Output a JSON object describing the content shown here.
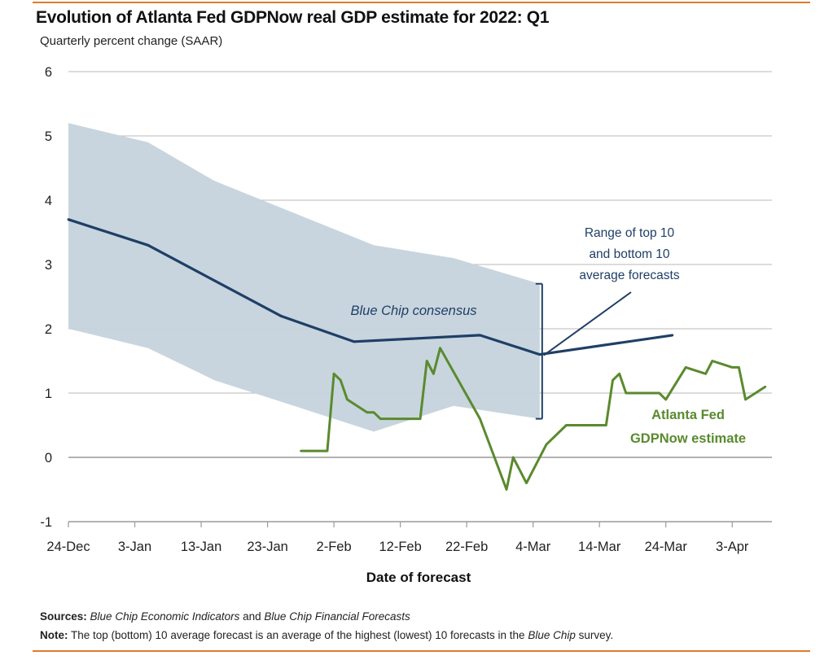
{
  "chart_data": {
    "type": "line",
    "title": "Evolution of Atlanta Fed GDPNow real GDP estimate for 2022: Q1",
    "subtitle": "Quarterly percent change (SAAR)",
    "xlabel": "Date of forecast",
    "ylabel": "",
    "ylim": [
      -1,
      6
    ],
    "yticks": [
      -1,
      0,
      1,
      2,
      3,
      4,
      5,
      6
    ],
    "xlim_days": [
      0,
      105
    ],
    "xticks": [
      {
        "day": 0,
        "label": "24-Dec"
      },
      {
        "day": 10,
        "label": "3-Jan"
      },
      {
        "day": 20,
        "label": "13-Jan"
      },
      {
        "day": 30,
        "label": "23-Jan"
      },
      {
        "day": 40,
        "label": "2-Feb"
      },
      {
        "day": 50,
        "label": "12-Feb"
      },
      {
        "day": 60,
        "label": "22-Feb"
      },
      {
        "day": 70,
        "label": "4-Mar"
      },
      {
        "day": 80,
        "label": "14-Mar"
      },
      {
        "day": 90,
        "label": "24-Mar"
      },
      {
        "day": 100,
        "label": "3-Apr"
      }
    ],
    "grid": true,
    "series": [
      {
        "name": "Range of top 10 and bottom 10 average forecasts",
        "kind": "band",
        "color": "#c5d3dc",
        "x": [
          0,
          12,
          22,
          34,
          46,
          58,
          71
        ],
        "upper": [
          5.2,
          4.9,
          4.3,
          3.8,
          3.3,
          3.1,
          2.7
        ],
        "lower": [
          2.0,
          1.7,
          1.2,
          0.8,
          0.4,
          0.8,
          0.6
        ]
      },
      {
        "name": "Blue Chip consensus",
        "kind": "line",
        "color": "#1f3f66",
        "x": [
          0,
          12,
          32,
          43,
          62,
          71,
          91
        ],
        "values": [
          3.7,
          3.3,
          2.2,
          1.8,
          1.9,
          1.6,
          1.9
        ]
      },
      {
        "name": "Atlanta Fed GDPNow estimate",
        "kind": "line",
        "color": "#5a8a2e",
        "x": [
          35,
          39,
          40,
          41,
          42,
          45,
          46,
          47,
          53,
          54,
          55,
          56,
          62,
          66,
          67,
          69,
          72,
          75,
          81,
          82,
          83,
          84,
          89,
          90,
          93,
          96,
          97,
          100,
          101,
          102,
          105
        ],
        "values": [
          0.1,
          0.1,
          1.3,
          1.2,
          0.9,
          0.7,
          0.7,
          0.6,
          0.6,
          1.5,
          1.3,
          1.7,
          0.6,
          -0.5,
          0.0,
          -0.4,
          0.2,
          0.5,
          0.5,
          1.2,
          1.3,
          1.0,
          1.0,
          0.9,
          1.4,
          1.3,
          1.5,
          1.4,
          1.4,
          0.9,
          1.1
        ]
      }
    ],
    "annotations": {
      "consensus_label": "Blue Chip consensus",
      "range_label": [
        "Range of top 10",
        "and bottom 10",
        "average forecasts"
      ],
      "gdpnow_label": [
        "Atlanta Fed",
        "GDPNow estimate"
      ]
    }
  },
  "footer": {
    "sources_label": "Sources:",
    "sources_src1": "Blue Chip Economic Indicators",
    "sources_and": " and ",
    "sources_src2": "Blue Chip Financial Forecasts",
    "note_label": "Note:",
    "note_text": " The top (bottom) 10 average forecast is an average of the highest (lowest) 10 forecasts in the ",
    "note_italic": "Blue Chip",
    "note_end": " survey."
  },
  "colors": {
    "accent_rule": "#e07a2e",
    "grid": "#b8b8b8",
    "band": "#c5d3dc",
    "consensus": "#1f3f66",
    "gdpnow": "#5a8a2e"
  }
}
